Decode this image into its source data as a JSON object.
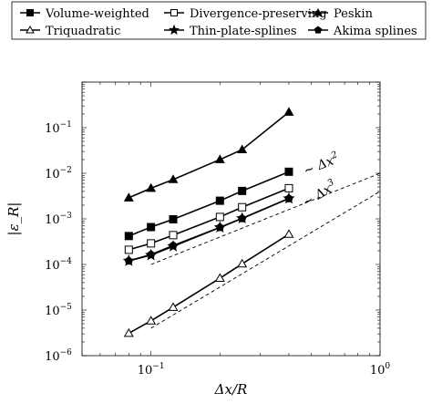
{
  "chart_data": {
    "type": "line",
    "xlabel": "Δx/R",
    "ylabel": "|ε_R|",
    "x_scale": "log",
    "y_scale": "log",
    "xlim": [
      0.05,
      1
    ],
    "ylim": [
      1e-06,
      1
    ],
    "x_ticks": [
      {
        "value": 0.1,
        "base": "10",
        "exp": "−1"
      },
      {
        "value": 1,
        "base": "10",
        "exp": "0"
      }
    ],
    "y_ticks": [
      {
        "value": 0.1,
        "base": "10",
        "exp": "−1"
      },
      {
        "value": 0.01,
        "base": "10",
        "exp": "−2"
      },
      {
        "value": 0.001,
        "base": "10",
        "exp": "−3"
      },
      {
        "value": 0.0001,
        "base": "10",
        "exp": "−4"
      },
      {
        "value": 1e-05,
        "base": "10",
        "exp": "−5"
      },
      {
        "value": 1e-06,
        "base": "10",
        "exp": "−6"
      }
    ],
    "legend_position": "top, above plot",
    "series": [
      {
        "name": "Volume-weighted",
        "marker": "square-filled",
        "x": [
          0.08,
          0.1,
          0.125,
          0.2,
          0.25,
          0.4
        ],
        "y": [
          0.00042,
          0.00066,
          0.00098,
          0.0025,
          0.0041,
          0.0108
        ]
      },
      {
        "name": "Divergence-preserving",
        "marker": "square-open",
        "x": [
          0.08,
          0.1,
          0.125,
          0.2,
          0.25,
          0.4
        ],
        "y": [
          0.00021,
          0.00029,
          0.00044,
          0.0011,
          0.0018,
          0.0047
        ]
      },
      {
        "name": "Peskin",
        "marker": "triangle-filled",
        "x": [
          0.08,
          0.1,
          0.125,
          0.2,
          0.25,
          0.4
        ],
        "y": [
          0.0029,
          0.0047,
          0.0073,
          0.02,
          0.033,
          0.22
        ]
      },
      {
        "name": "Triquadratic",
        "marker": "triangle-open",
        "x": [
          0.08,
          0.1,
          0.125,
          0.2,
          0.25,
          0.4
        ],
        "y": [
          3.1e-06,
          5.8e-06,
          1.15e-05,
          5e-05,
          0.000103,
          0.00046
        ]
      },
      {
        "name": "Thin-plate-splines",
        "marker": "star",
        "x": [
          0.08,
          0.1,
          0.125,
          0.2,
          0.25,
          0.4
        ],
        "y": [
          0.00012,
          0.00016,
          0.00025,
          0.00065,
          0.00103,
          0.0028
        ]
      },
      {
        "name": "Akima splines",
        "marker": "pentagon-filled",
        "x": [
          0.08,
          0.1,
          0.125,
          0.2,
          0.25,
          0.4
        ],
        "y": [
          0.00012,
          0.000165,
          0.00026,
          0.00065,
          0.00102,
          0.0028
        ]
      }
    ],
    "reference_lines": [
      {
        "label_prefix": "∼ Δx",
        "label_exp": "2",
        "x": [
          0.1,
          1
        ],
        "y": [
          0.0001,
          0.01
        ]
      },
      {
        "label_prefix": "∼ Δx",
        "label_exp": "3",
        "x": [
          0.1,
          1
        ],
        "y": [
          4e-06,
          0.004
        ]
      }
    ]
  }
}
